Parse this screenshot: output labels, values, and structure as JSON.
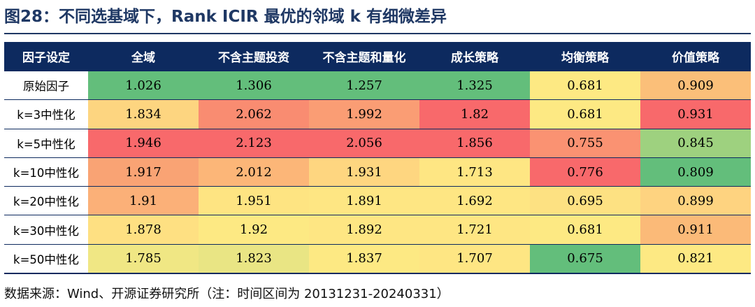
{
  "title": "图28：不同选基域下，Rank ICIR 最优的邻域 k 有细微差异",
  "table": {
    "headers": [
      "因子设定",
      "全域",
      "不含主题投资",
      "不含主题和量化",
      "成长策略",
      "均衡策略",
      "价值策略"
    ],
    "rows": [
      {
        "label": "原始因子",
        "cells": [
          {
            "value": "1.026",
            "color": "#63be7b"
          },
          {
            "value": "1.306",
            "color": "#63be7b"
          },
          {
            "value": "1.257",
            "color": "#63be7b"
          },
          {
            "value": "1.325",
            "color": "#63be7b"
          },
          {
            "value": "0.681",
            "color": "#fde983"
          },
          {
            "value": "0.909",
            "color": "#fbbf79"
          }
        ]
      },
      {
        "label": "k=3中性化",
        "cells": [
          {
            "value": "1.834",
            "color": "#fdd580"
          },
          {
            "value": "2.062",
            "color": "#f98c71"
          },
          {
            "value": "1.992",
            "color": "#fa9d74"
          },
          {
            "value": "1.82",
            "color": "#f8696b"
          },
          {
            "value": "0.681",
            "color": "#fde983"
          },
          {
            "value": "0.931",
            "color": "#f8696b"
          }
        ]
      },
      {
        "label": "k=5中性化",
        "cells": [
          {
            "value": "1.946",
            "color": "#f8696b"
          },
          {
            "value": "2.123",
            "color": "#f8696b"
          },
          {
            "value": "2.056",
            "color": "#f8696b"
          },
          {
            "value": "1.856",
            "color": "#f8696b"
          },
          {
            "value": "0.755",
            "color": "#fa9272"
          },
          {
            "value": "0.845",
            "color": "#9ed17f"
          }
        ]
      },
      {
        "label": "k=10中性化",
        "cells": [
          {
            "value": "1.917",
            "color": "#f9a374"
          },
          {
            "value": "2.012",
            "color": "#fcb678"
          },
          {
            "value": "1.931",
            "color": "#fed680"
          },
          {
            "value": "1.713",
            "color": "#fee683"
          },
          {
            "value": "0.776",
            "color": "#f8696b"
          },
          {
            "value": "0.809",
            "color": "#63be7b"
          }
        ]
      },
      {
        "label": "k=20中性化",
        "cells": [
          {
            "value": "1.91",
            "color": "#fbb078"
          },
          {
            "value": "1.951",
            "color": "#fee482"
          },
          {
            "value": "1.891",
            "color": "#fee683"
          },
          {
            "value": "1.692",
            "color": "#fee683"
          },
          {
            "value": "0.695",
            "color": "#fde182"
          },
          {
            "value": "0.899",
            "color": "#fed380"
          }
        ]
      },
      {
        "label": "k=30中性化",
        "cells": [
          {
            "value": "1.878",
            "color": "#fee082"
          },
          {
            "value": "1.92",
            "color": "#fde983"
          },
          {
            "value": "1.892",
            "color": "#fee683"
          },
          {
            "value": "1.721",
            "color": "#fee683"
          },
          {
            "value": "0.681",
            "color": "#fde983"
          },
          {
            "value": "0.911",
            "color": "#fbba78"
          }
        ]
      },
      {
        "label": "k=50中性化",
        "cells": [
          {
            "value": "1.785",
            "color": "#f0e784"
          },
          {
            "value": "1.823",
            "color": "#e9e584"
          },
          {
            "value": "1.837",
            "color": "#fde983"
          },
          {
            "value": "1.707",
            "color": "#fee683"
          },
          {
            "value": "0.675",
            "color": "#63be7b"
          },
          {
            "value": "0.821",
            "color": "#fde983"
          }
        ]
      }
    ]
  },
  "source": "数据来源：Wind、开源证券研究所（注：时间区间为 20131231-20240331）"
}
